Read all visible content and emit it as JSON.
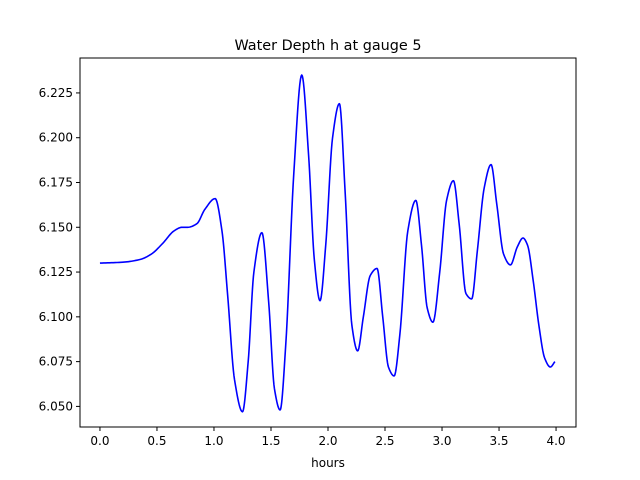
{
  "chart_data": {
    "type": "line",
    "title": "Water Depth h at gauge 5",
    "xlabel": "hours",
    "ylabel": "",
    "xlim": [
      -0.175,
      4.175
    ],
    "ylim": [
      6.0385,
      6.2445
    ],
    "xticks": [
      0.0,
      0.5,
      1.0,
      1.5,
      2.0,
      2.5,
      3.0,
      3.5,
      4.0
    ],
    "xtick_labels": [
      "0.0",
      "0.5",
      "1.0",
      "1.5",
      "2.0",
      "2.5",
      "3.0",
      "3.5",
      "4.0"
    ],
    "yticks": [
      6.05,
      6.075,
      6.1,
      6.125,
      6.15,
      6.175,
      6.2,
      6.225
    ],
    "ytick_labels": [
      "6.050",
      "6.075",
      "6.100",
      "6.125",
      "6.150",
      "6.175",
      "6.200",
      "6.225"
    ],
    "grid": false,
    "series": [
      {
        "color": "#0000ff",
        "x": [
          0.0,
          0.2,
          0.35,
          0.45,
          0.55,
          0.65,
          0.72,
          0.77,
          0.85,
          0.92,
          1.01,
          1.07,
          1.12,
          1.18,
          1.25,
          1.3,
          1.35,
          1.42,
          1.48,
          1.53,
          1.58,
          1.63,
          1.7,
          1.77,
          1.83,
          1.88,
          1.93,
          1.98,
          2.04,
          2.1,
          2.15,
          2.21,
          2.26,
          2.31,
          2.37,
          2.43,
          2.48,
          2.53,
          2.58,
          2.63,
          2.7,
          2.77,
          2.82,
          2.87,
          2.92,
          2.98,
          3.04,
          3.1,
          3.15,
          3.21,
          3.26,
          3.31,
          3.37,
          3.43,
          3.48,
          3.54,
          3.6,
          3.66,
          3.71,
          3.75,
          3.8,
          3.85,
          3.9,
          3.95,
          3.99
        ],
        "y": [
          6.13,
          6.1305,
          6.132,
          6.135,
          6.141,
          6.148,
          6.15,
          6.15,
          6.152,
          6.16,
          6.166,
          6.148,
          6.112,
          6.065,
          6.047,
          6.075,
          6.125,
          6.147,
          6.108,
          6.06,
          6.048,
          6.085,
          6.18,
          6.235,
          6.19,
          6.132,
          6.109,
          6.14,
          6.2,
          6.219,
          6.17,
          6.095,
          6.081,
          6.1,
          6.123,
          6.127,
          6.1,
          6.072,
          6.067,
          6.09,
          6.148,
          6.165,
          6.14,
          6.105,
          6.097,
          6.125,
          6.165,
          6.176,
          6.152,
          6.113,
          6.11,
          6.137,
          6.172,
          6.185,
          6.163,
          6.135,
          6.129,
          6.139,
          6.144,
          6.14,
          6.12,
          6.095,
          6.077,
          6.072,
          6.075
        ]
      }
    ]
  }
}
